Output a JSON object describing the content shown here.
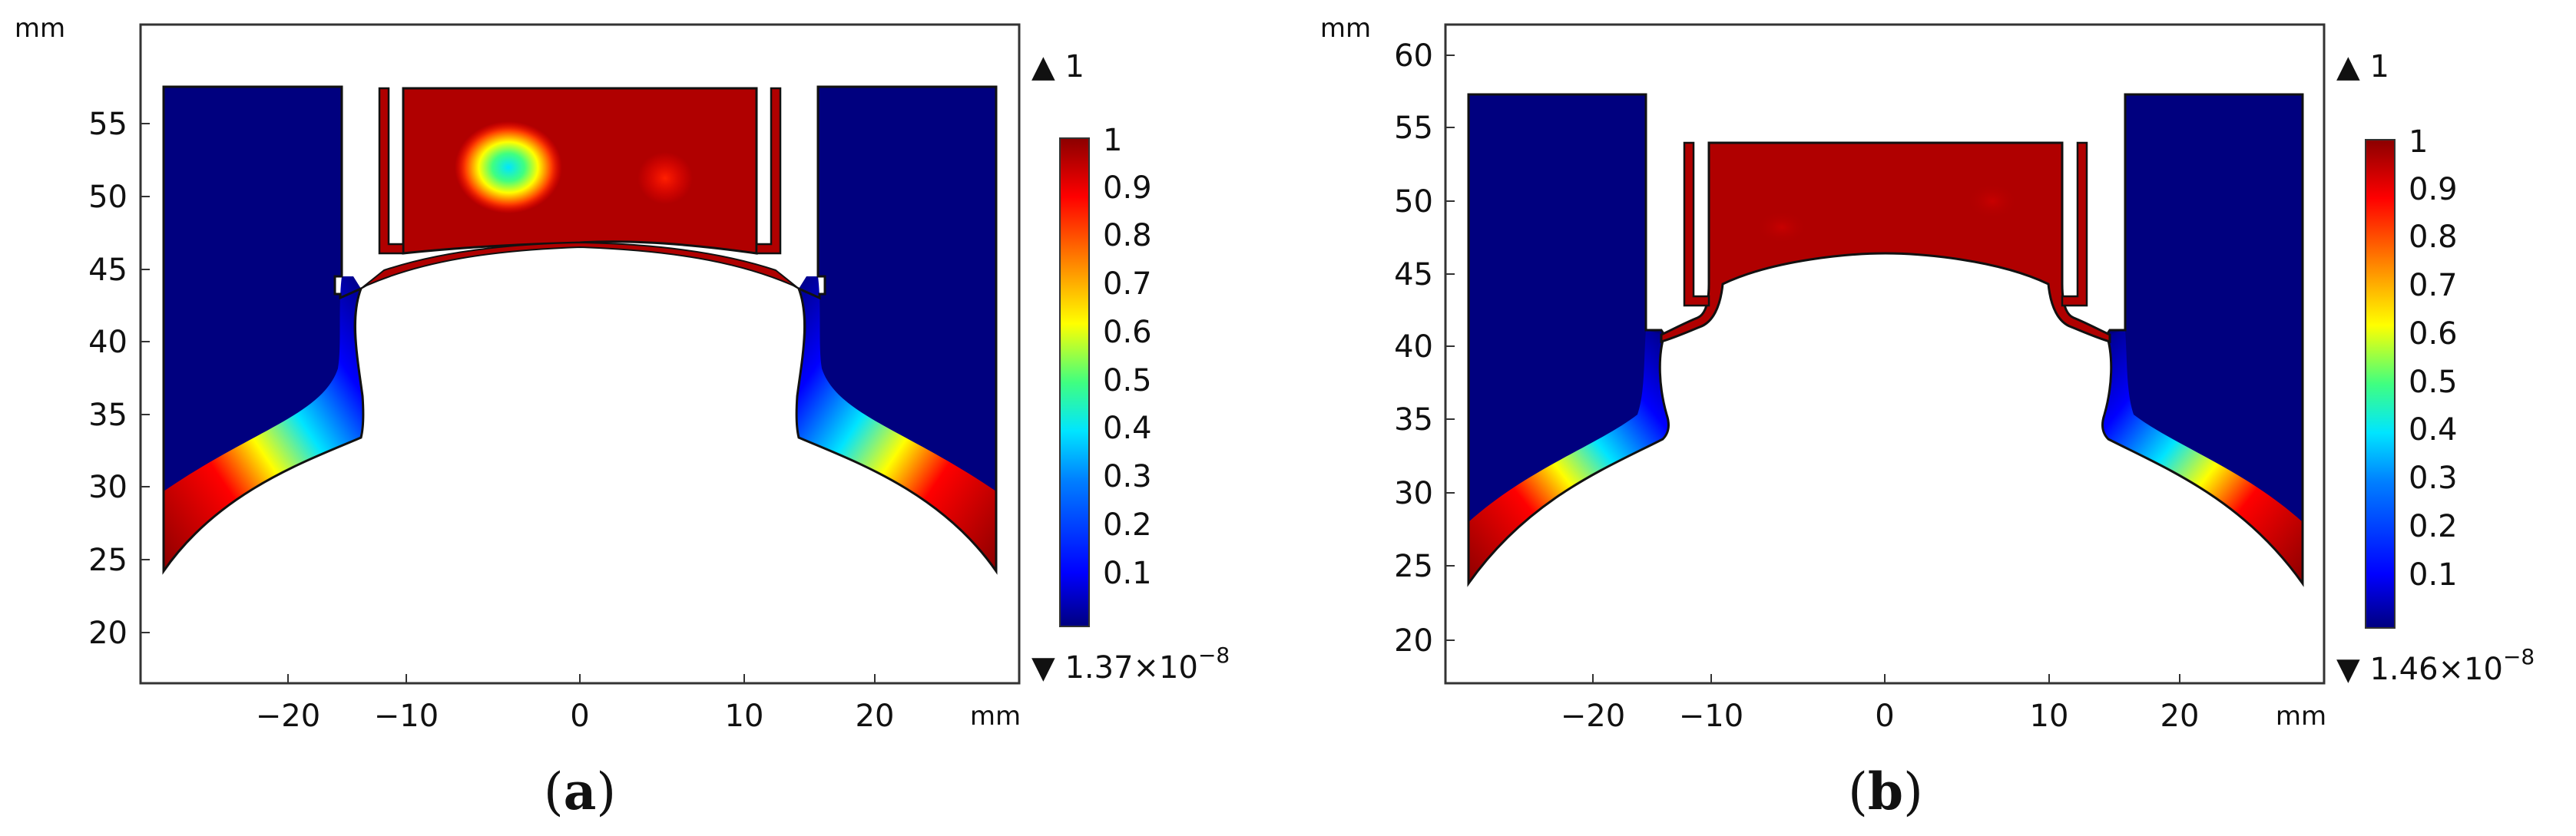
{
  "colors": {
    "low": "#00007f",
    "high": "#8b0000",
    "outline": "#111111",
    "background": "#ffffff",
    "colormap": [
      "#00007f",
      "#0000ff",
      "#0080ff",
      "#00e5ff",
      "#40ff80",
      "#ffff00",
      "#ff8000",
      "#ff0000",
      "#8b0000"
    ]
  },
  "panels": [
    {
      "label_open": "(",
      "label_letter": "a",
      "label_close": ")",
      "unit_x": "mm",
      "unit_y": "mm",
      "x_ticks": [
        "−20",
        "−10",
        "0",
        "10",
        "20"
      ],
      "y_ticks": [
        "20",
        "25",
        "30",
        "35",
        "40",
        "45",
        "50",
        "55"
      ],
      "max_marker": "▲ 1",
      "min_marker_base": "▼ 1.37×10",
      "min_marker_exp": "−8",
      "colorbar_top": "1",
      "colorbar_ticks": [
        "0.9",
        "0.8",
        "0.7",
        "0.6",
        "0.5",
        "0.4",
        "0.3",
        "0.2",
        "0.1"
      ]
    },
    {
      "label_open": "(",
      "label_letter": "b",
      "label_close": ")",
      "unit_x": "mm",
      "unit_y": "mm",
      "x_ticks": [
        "−20",
        "−10",
        "0",
        "10",
        "20"
      ],
      "y_ticks": [
        "20",
        "25",
        "30",
        "35",
        "40",
        "45",
        "50",
        "55",
        "60"
      ],
      "max_marker": "▲ 1",
      "min_marker_base": "▼ 1.46×10",
      "min_marker_exp": "−8",
      "colorbar_top": "1",
      "colorbar_ticks": [
        "0.9",
        "0.8",
        "0.7",
        "0.6",
        "0.5",
        "0.4",
        "0.3",
        "0.2",
        "0.1"
      ]
    }
  ]
}
